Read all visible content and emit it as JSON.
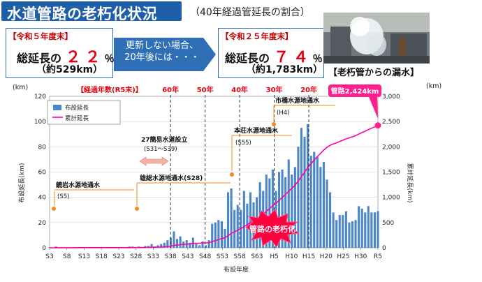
{
  "header": {
    "title": "水道管路の老朽化状況",
    "subtitle": "（40年経過管延長の割合）"
  },
  "current": {
    "head": "【令和５年度末】",
    "label": "総延長の",
    "pct": "２２",
    "pct_unit": "％",
    "sub": "（約529km）"
  },
  "arrow": {
    "line1": "更新しない場合、",
    "line2": "20年後には・・・"
  },
  "future": {
    "head": "【令和２５年度末】",
    "label": "総延長の",
    "pct": "７４",
    "pct_unit": "％",
    "sub": "（約1,783km）"
  },
  "photo": {
    "caption": "【老朽管からの漏水】"
  },
  "chart_data": {
    "type": "bar",
    "xlabel": "布設年度",
    "ylabel_left": "布設延長(km)",
    "ylabel_right": "累計延長(km)",
    "unit_left": "(km)",
    "unit_right": "(km)",
    "ylim_left": [
      0,
      120
    ],
    "ylim_right": [
      0,
      3000
    ],
    "yticks_left": [
      "0",
      "20",
      "40",
      "60",
      "80",
      "100",
      "120"
    ],
    "yticks_right": [
      "0",
      "500",
      "1,000",
      "1,500",
      "2,000",
      "2,500",
      "3,000"
    ],
    "xtick_labels": [
      "S3",
      "S8",
      "S13",
      "S18",
      "S23",
      "S28",
      "S33",
      "S38",
      "S43",
      "S48",
      "S53",
      "S58",
      "S63",
      "H5",
      "H10",
      "H15",
      "H20",
      "H25",
      "H30",
      "R5"
    ],
    "legend": [
      "布設延長",
      "累計延長"
    ],
    "legend_position": "top-left",
    "series": [
      {
        "name": "布設延長",
        "kind": "bar",
        "color": "#4a86c8",
        "values": [
          0.5,
          0,
          1,
          0,
          0.5,
          0,
          0,
          0,
          0.5,
          0,
          0,
          0,
          0,
          0,
          0,
          0,
          0,
          0,
          0,
          0,
          0,
          0,
          0,
          0,
          0,
          1,
          1,
          0,
          1,
          0,
          1.5,
          1.5,
          3,
          1,
          2,
          3,
          4,
          6,
          8,
          13,
          7,
          9,
          5,
          6,
          4,
          8,
          3,
          2,
          5,
          2,
          6,
          19,
          20,
          22,
          21,
          15,
          44,
          47,
          30,
          34,
          30,
          45,
          35,
          44,
          36,
          40,
          52,
          45,
          58,
          55,
          62,
          45,
          60,
          62,
          56,
          70,
          58,
          64,
          80,
          95,
          88,
          98,
          73,
          76,
          72,
          64,
          68,
          54,
          44,
          28,
          22,
          26,
          26,
          29,
          20,
          21,
          22,
          33,
          31,
          28,
          33,
          28,
          28,
          29
        ]
      },
      {
        "name": "累計延長",
        "kind": "line",
        "color": "#ff00aa",
        "final_value": 2424,
        "final_label": "管路2,424km"
      }
    ],
    "elapsed_header": "【経過年数(R5末)】",
    "elapsed_markers": [
      {
        "label": "60年",
        "at": "S38"
      },
      {
        "label": "50年",
        "at": "S48"
      },
      {
        "label": "40年",
        "at": "S58"
      },
      {
        "label": "30年",
        "at": "H5"
      },
      {
        "label": "20年",
        "at": "H15"
      }
    ],
    "annotations": [
      {
        "text": "鏡岩水源地通水",
        "sub": "(S5)"
      },
      {
        "text": "27簡易水道設立",
        "sub": "(S31～S39)"
      },
      {
        "text": "雄総水源地通水(S28)",
        "sub": ""
      },
      {
        "text": "本荘水源地通水",
        "sub": "(S55)"
      },
      {
        "text": "市橋水源地通水",
        "sub": "(H4)"
      }
    ],
    "callout": "管路の老朽化"
  }
}
